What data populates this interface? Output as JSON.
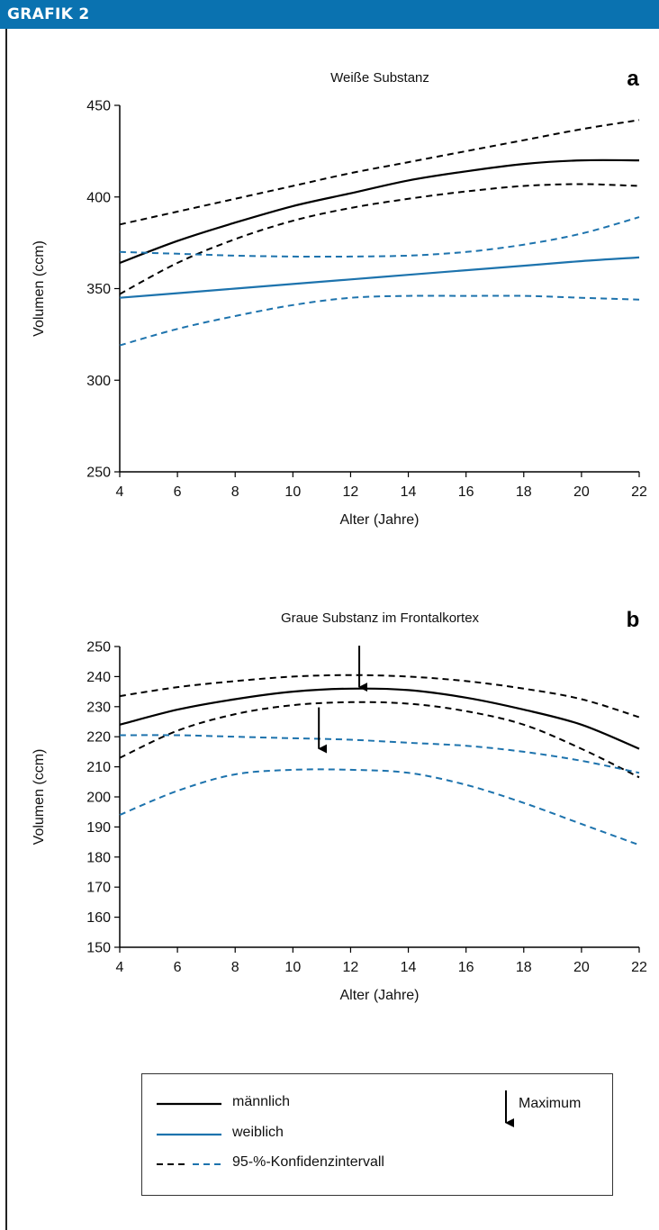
{
  "header": {
    "title": "GRAFIK 2"
  },
  "colors": {
    "header_bg": "#0a72b0",
    "male": "#000000",
    "female": "#1d73ad"
  },
  "chart_data": [
    {
      "type": "line",
      "panel_letter": "a",
      "title": "Weiße Substanz",
      "xlabel": "Alter (Jahre)",
      "ylabel": "Volumen (ccm)",
      "xlim": [
        4,
        22
      ],
      "ylim": [
        250,
        450
      ],
      "xticks": [
        4,
        6,
        8,
        10,
        12,
        14,
        16,
        18,
        20,
        22
      ],
      "yticks": [
        250,
        300,
        350,
        400,
        450
      ],
      "grid": false,
      "series": [
        {
          "name": "männlich",
          "style": "solid",
          "color": "#000000",
          "x": [
            4,
            6,
            8,
            10,
            12,
            14,
            16,
            18,
            20,
            22
          ],
          "y": [
            364,
            376,
            386,
            395,
            402,
            409,
            414,
            418,
            420,
            420
          ]
        },
        {
          "name": "männlich 95-%-Konfidenzintervall (oben)",
          "style": "dashed",
          "color": "#000000",
          "x": [
            4,
            6,
            8,
            10,
            12,
            14,
            16,
            18,
            20,
            22
          ],
          "y": [
            385,
            392,
            399,
            406,
            413,
            419,
            425,
            431,
            437,
            442
          ]
        },
        {
          "name": "männlich 95-%-Konfidenzintervall (unten)",
          "style": "dashed",
          "color": "#000000",
          "x": [
            4,
            6,
            8,
            10,
            12,
            14,
            16,
            18,
            20,
            22
          ],
          "y": [
            347,
            364,
            377,
            387,
            394,
            399,
            403,
            406,
            407,
            406
          ]
        },
        {
          "name": "weiblich",
          "style": "solid",
          "color": "#1d73ad",
          "x": [
            4,
            6,
            8,
            10,
            12,
            14,
            16,
            18,
            20,
            22
          ],
          "y": [
            345,
            347.5,
            350,
            352.5,
            355,
            357.5,
            360,
            362.5,
            365,
            367
          ]
        },
        {
          "name": "weiblich 95-%-Konfidenzintervall (oben)",
          "style": "dashed",
          "color": "#1d73ad",
          "x": [
            4,
            6,
            8,
            10,
            12,
            14,
            16,
            18,
            20,
            22
          ],
          "y": [
            370,
            369,
            368,
            367.5,
            367.5,
            368,
            370,
            374,
            380,
            389
          ]
        },
        {
          "name": "weiblich 95-%-Konfidenzintervall (unten)",
          "style": "dashed",
          "color": "#1d73ad",
          "x": [
            4,
            6,
            8,
            10,
            12,
            14,
            16,
            18,
            20,
            22
          ],
          "y": [
            319,
            328,
            335,
            341,
            345,
            346,
            346,
            346,
            345,
            344
          ]
        }
      ],
      "annotations": []
    },
    {
      "type": "line",
      "panel_letter": "b",
      "title": "Graue Substanz im Frontalkortex",
      "xlabel": "Alter (Jahre)",
      "ylabel": "Volumen (ccm)",
      "xlim": [
        4,
        22
      ],
      "ylim": [
        150,
        250
      ],
      "xticks": [
        4,
        6,
        8,
        10,
        12,
        14,
        16,
        18,
        20,
        22
      ],
      "yticks": [
        150,
        160,
        170,
        180,
        190,
        200,
        210,
        220,
        230,
        240,
        250
      ],
      "grid": false,
      "series": [
        {
          "name": "männlich",
          "style": "solid",
          "color": "#000000",
          "x": [
            4,
            6,
            8,
            10,
            12,
            14,
            16,
            18,
            20,
            22
          ],
          "y": [
            224,
            229,
            232.5,
            235,
            236,
            235.5,
            233,
            229,
            224,
            216
          ]
        },
        {
          "name": "männlich 95-%-Konfidenzintervall (oben)",
          "style": "dashed",
          "color": "#000000",
          "x": [
            4,
            6,
            8,
            10,
            12,
            14,
            16,
            18,
            20,
            22
          ],
          "y": [
            233.5,
            236.5,
            238.5,
            240,
            240.5,
            240,
            238.5,
            236,
            232.5,
            226.5
          ]
        },
        {
          "name": "männlich 95-%-Konfidenzintervall (unten)",
          "style": "dashed",
          "color": "#000000",
          "x": [
            4,
            6,
            8,
            10,
            12,
            14,
            16,
            18,
            20,
            22
          ],
          "y": [
            213,
            222,
            227.5,
            230.5,
            231.5,
            231,
            228.5,
            224,
            216,
            206.5
          ]
        },
        {
          "name": "weiblich 95-%-Konfidenzintervall (oben)",
          "style": "dashed",
          "color": "#1d73ad",
          "x": [
            4,
            6,
            8,
            10,
            12,
            14,
            16,
            18,
            20,
            22
          ],
          "y": [
            220.5,
            220.5,
            220,
            219.5,
            219,
            218,
            217,
            215,
            212,
            208
          ]
        },
        {
          "name": "weiblich 95-%-Konfidenzintervall (unten)",
          "style": "dashed",
          "color": "#1d73ad",
          "x": [
            4,
            6,
            8,
            10,
            12,
            14,
            16,
            18,
            20,
            22
          ],
          "y": [
            194,
            202,
            207.5,
            209,
            209,
            208,
            204,
            198,
            191,
            184
          ]
        }
      ],
      "annotations": [
        {
          "label": "Maximum",
          "x": 12.3,
          "y": 236.5,
          "color": "#000000"
        },
        {
          "label": "Maximum",
          "x": 10.9,
          "y": 216,
          "color": "#000000"
        }
      ]
    }
  ],
  "legend": {
    "items": [
      {
        "label": "männlich",
        "style": "solid",
        "color": "#000000"
      },
      {
        "label": "weiblich",
        "style": "solid",
        "color": "#1d73ad"
      },
      {
        "label": "95-%-Konfidenzintervall",
        "style": "dashed-pair"
      }
    ],
    "maximum_label": "Maximum"
  }
}
